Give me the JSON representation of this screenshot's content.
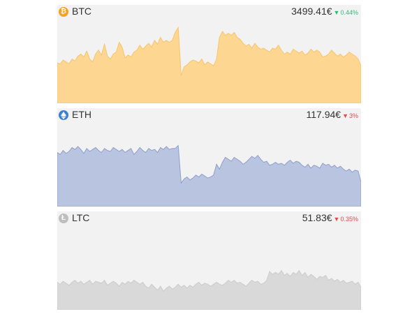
{
  "coins": [
    {
      "symbol": "BTC",
      "icon": "bitcoin-icon",
      "icon_glyph": "₿",
      "icon_color": "#F7A21B",
      "price": "3499.41€",
      "change": "0.44%",
      "direction": "down",
      "change_color": "#2bbf7a",
      "fill_color": "#FDD792",
      "stroke_color": "#F7C46C",
      "series": [
        0.59,
        0.6,
        0.56,
        0.58,
        0.6,
        0.55,
        0.57,
        0.52,
        0.5,
        0.53,
        0.47,
        0.55,
        0.58,
        0.5,
        0.46,
        0.51,
        0.4,
        0.52,
        0.55,
        0.5,
        0.48,
        0.38,
        0.43,
        0.54,
        0.51,
        0.53,
        0.48,
        0.46,
        0.41,
        0.45,
        0.42,
        0.39,
        0.43,
        0.36,
        0.4,
        0.33,
        0.38,
        0.36,
        0.38,
        0.36,
        0.28,
        0.23,
        0.72,
        0.63,
        0.61,
        0.58,
        0.56,
        0.57,
        0.59,
        0.55,
        0.61,
        0.58,
        0.6,
        0.62,
        0.55,
        0.33,
        0.27,
        0.31,
        0.29,
        0.31,
        0.28,
        0.33,
        0.35,
        0.39,
        0.42,
        0.4,
        0.44,
        0.39,
        0.43,
        0.45,
        0.44,
        0.46,
        0.48,
        0.44,
        0.45,
        0.41,
        0.46,
        0.5,
        0.48,
        0.5,
        0.45,
        0.47,
        0.49,
        0.47,
        0.51,
        0.49,
        0.45,
        0.48,
        0.46,
        0.48,
        0.53,
        0.52,
        0.5,
        0.46,
        0.49,
        0.52,
        0.5,
        0.53,
        0.51,
        0.48,
        0.5,
        0.52,
        0.55,
        0.62
      ]
    },
    {
      "symbol": "ETH",
      "icon": "ethereum-icon",
      "icon_glyph": "",
      "icon_color": "#3C7FD5",
      "price": "117.94€",
      "change": "3%",
      "direction": "down",
      "change_color": "#e5484d",
      "fill_color": "#B8C4E0",
      "stroke_color": "#8F9FCA",
      "series": [
        0.45,
        0.47,
        0.43,
        0.46,
        0.44,
        0.4,
        0.42,
        0.39,
        0.42,
        0.46,
        0.41,
        0.44,
        0.42,
        0.4,
        0.43,
        0.45,
        0.41,
        0.43,
        0.44,
        0.4,
        0.42,
        0.44,
        0.42,
        0.45,
        0.43,
        0.41,
        0.47,
        0.44,
        0.4,
        0.43,
        0.45,
        0.41,
        0.43,
        0.42,
        0.45,
        0.4,
        0.42,
        0.39,
        0.42,
        0.41,
        0.41,
        0.38,
        0.76,
        0.72,
        0.7,
        0.73,
        0.71,
        0.68,
        0.7,
        0.67,
        0.69,
        0.71,
        0.7,
        0.68,
        0.57,
        0.62,
        0.55,
        0.5,
        0.52,
        0.54,
        0.5,
        0.52,
        0.54,
        0.57,
        0.55,
        0.52,
        0.49,
        0.51,
        0.48,
        0.52,
        0.55,
        0.54,
        0.58,
        0.57,
        0.55,
        0.57,
        0.56,
        0.58,
        0.55,
        0.53,
        0.56,
        0.54,
        0.55,
        0.58,
        0.6,
        0.57,
        0.61,
        0.58,
        0.59,
        0.61,
        0.56,
        0.58,
        0.57,
        0.6,
        0.58,
        0.61,
        0.59,
        0.62,
        0.64,
        0.62,
        0.65,
        0.63,
        0.64,
        0.75
      ]
    },
    {
      "symbol": "LTC",
      "icon": "litecoin-icon",
      "icon_glyph": "Ł",
      "icon_color": "#BEBEBE",
      "price": "51.83€",
      "change": "0.35%",
      "direction": "down",
      "change_color": "#e5484d",
      "fill_color": "#D9D9D9",
      "stroke_color": "#CCCCCC",
      "series": [
        0.72,
        0.74,
        0.71,
        0.73,
        0.75,
        0.72,
        0.7,
        0.73,
        0.71,
        0.74,
        0.72,
        0.7,
        0.74,
        0.71,
        0.72,
        0.73,
        0.7,
        0.75,
        0.73,
        0.71,
        0.73,
        0.76,
        0.72,
        0.74,
        0.71,
        0.73,
        0.7,
        0.72,
        0.74,
        0.72,
        0.76,
        0.78,
        0.74,
        0.77,
        0.8,
        0.76,
        0.81,
        0.78,
        0.76,
        0.79,
        0.77,
        0.74,
        0.77,
        0.75,
        0.78,
        0.75,
        0.77,
        0.74,
        0.72,
        0.75,
        0.73,
        0.74,
        0.76,
        0.74,
        0.72,
        0.74,
        0.75,
        0.73,
        0.7,
        0.72,
        0.7,
        0.73,
        0.72,
        0.74,
        0.76,
        0.73,
        0.7,
        0.72,
        0.71,
        0.74,
        0.73,
        0.7,
        0.61,
        0.64,
        0.62,
        0.64,
        0.6,
        0.65,
        0.63,
        0.66,
        0.62,
        0.64,
        0.6,
        0.65,
        0.62,
        0.67,
        0.64,
        0.66,
        0.69,
        0.66,
        0.67,
        0.65,
        0.7,
        0.68,
        0.71,
        0.69,
        0.72,
        0.7,
        0.73,
        0.72,
        0.71,
        0.74,
        0.72,
        0.77
      ]
    }
  ]
}
